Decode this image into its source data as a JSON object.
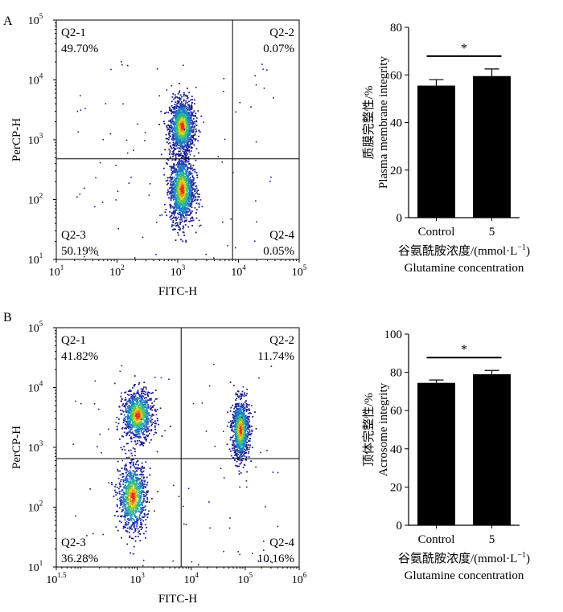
{
  "chart_data": [
    {
      "panel": "A",
      "type": "scatter",
      "xlabel": "FITC-H",
      "ylabel": "PerCP-H",
      "x_scale": "log",
      "y_scale": "log",
      "xlim": [
        10,
        100000
      ],
      "ylim": [
        10,
        100000
      ],
      "x_ticks": [
        {
          "value": 10,
          "base": "10",
          "exp": "1"
        },
        {
          "value": 100,
          "base": "10",
          "exp": "2"
        },
        {
          "value": 1000,
          "base": "10",
          "exp": "3"
        },
        {
          "value": 10000,
          "base": "10",
          "exp": "4"
        },
        {
          "value": 100000,
          "base": "10",
          "exp": "5"
        }
      ],
      "y_ticks": [
        {
          "value": 10,
          "base": "10",
          "exp": "1"
        },
        {
          "value": 100,
          "base": "10",
          "exp": "2"
        },
        {
          "value": 1000,
          "base": "10",
          "exp": "3"
        },
        {
          "value": 10000,
          "base": "10",
          "exp": "4"
        },
        {
          "value": 100000,
          "base": "10",
          "exp": "5"
        }
      ],
      "gate_x": 8000,
      "gate_y": 480,
      "quadrants": [
        {
          "name": "Q2-1",
          "value": "49.70%",
          "pos": "top-left"
        },
        {
          "name": "Q2-2",
          "value": "0.07%",
          "pos": "top-right"
        },
        {
          "name": "Q2-3",
          "value": "50.19%",
          "pos": "bottom-left"
        },
        {
          "name": "Q2-4",
          "value": "0.05%",
          "pos": "bottom-right"
        }
      ],
      "populations": [
        {
          "x": 1150,
          "y": 1700,
          "sx": 0.1,
          "sy": 0.22
        },
        {
          "x": 1150,
          "y": 150,
          "sx": 0.1,
          "sy": 0.28
        }
      ]
    },
    {
      "panel": "A",
      "type": "bar",
      "categories": [
        "Control",
        "5"
      ],
      "values": [
        55.5,
        59.5
      ],
      "errors": [
        2.5,
        3.0
      ],
      "ylabel_cn": "质膜完整性/%",
      "ylabel_en": "Plasma membrane integrity",
      "xlabel_cn": "谷氨酰胺浓度/(mmol·L",
      "xlabel_sup": "−1",
      "xlabel_close": ")",
      "xlabel_en": "Glutamine concentration",
      "ylim": [
        0,
        80
      ],
      "yticks": [
        0,
        20,
        40,
        60,
        80
      ],
      "significance": "*",
      "bar_color": "#000000"
    },
    {
      "panel": "B",
      "type": "scatter",
      "xlabel": "FITC-H",
      "ylabel": "PerCP-H",
      "x_scale": "log",
      "y_scale": "log",
      "xlim": [
        31.6,
        1000000
      ],
      "ylim": [
        10,
        100000
      ],
      "x_ticks": [
        {
          "value": 31.6,
          "base": "10",
          "exp": "1.5"
        },
        {
          "value": 1000,
          "base": "10",
          "exp": "3"
        },
        {
          "value": 10000,
          "base": "10",
          "exp": "4"
        },
        {
          "value": 100000,
          "base": "10",
          "exp": "5"
        },
        {
          "value": 1000000,
          "base": "10",
          "exp": "6"
        }
      ],
      "y_ticks": [
        {
          "value": 10,
          "base": "10",
          "exp": "1"
        },
        {
          "value": 100,
          "base": "10",
          "exp": "2"
        },
        {
          "value": 1000,
          "base": "10",
          "exp": "3"
        },
        {
          "value": 10000,
          "base": "10",
          "exp": "4"
        },
        {
          "value": 100000,
          "base": "10",
          "exp": "5"
        }
      ],
      "gate_x": 6500,
      "gate_y": 650,
      "quadrants": [
        {
          "name": "Q2-1",
          "value": "41.82%",
          "pos": "top-left"
        },
        {
          "name": "Q2-2",
          "value": "11.74%",
          "pos": "top-right"
        },
        {
          "name": "Q2-3",
          "value": "36.28%",
          "pos": "bottom-left"
        },
        {
          "name": "Q2-4",
          "value": "10.16%",
          "pos": "bottom-right"
        }
      ],
      "populations": [
        {
          "x": 1000,
          "y": 3500,
          "sx": 0.14,
          "sy": 0.2
        },
        {
          "x": 800,
          "y": 150,
          "sx": 0.13,
          "sy": 0.28
        },
        {
          "x": 80000,
          "y": 2000,
          "sx": 0.08,
          "sy": 0.25
        }
      ]
    },
    {
      "panel": "B",
      "type": "bar",
      "categories": [
        "Control",
        "5"
      ],
      "values": [
        74.5,
        79
      ],
      "errors": [
        1.5,
        2.0
      ],
      "ylabel_cn": "顶体完整性/%",
      "ylabel_en": "Acrosome integrity",
      "xlabel_cn": "谷氨酰胺浓度/(mmol·L",
      "xlabel_sup": "−1",
      "xlabel_close": ")",
      "xlabel_en": "Glutamine concentration",
      "ylim": [
        0,
        100
      ],
      "yticks": [
        0,
        20,
        40,
        60,
        80,
        100
      ],
      "significance": "*",
      "bar_color": "#000000"
    }
  ],
  "panel_labels": [
    "A",
    "B"
  ]
}
